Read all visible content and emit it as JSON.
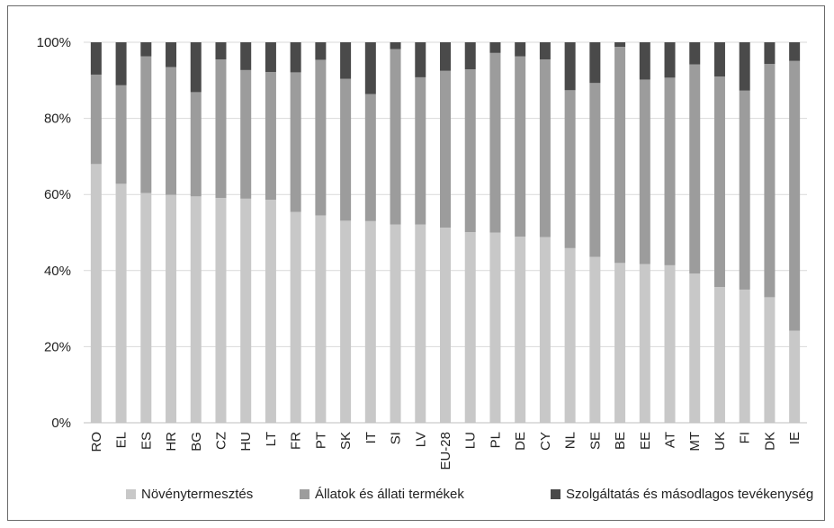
{
  "chart_data": {
    "type": "bar",
    "stacked": true,
    "percent_axis": true,
    "categories": [
      "RO",
      "EL",
      "ES",
      "HR",
      "BG",
      "CZ",
      "HU",
      "LT",
      "FR",
      "PT",
      "SK",
      "IT",
      "SI",
      "LV",
      "EU-28",
      "LU",
      "PL",
      "DE",
      "CY",
      "NL",
      "SE",
      "BE",
      "EE",
      "AT",
      "MT",
      "UK",
      "FI",
      "DK",
      "IE"
    ],
    "series": [
      {
        "name": "Növénytermesztés",
        "color": "#c8c8c8",
        "values": [
          68.0,
          62.8,
          60.4,
          59.9,
          59.5,
          59.1,
          58.9,
          58.6,
          55.4,
          54.5,
          53.1,
          53.0,
          52.1,
          52.1,
          51.3,
          50.1,
          50.0,
          48.9,
          48.8,
          45.9,
          43.6,
          42.0,
          41.7,
          41.4,
          39.2,
          35.7,
          35.0,
          33.0,
          24.2
        ]
      },
      {
        "name": "Állatok és állati termékek",
        "color": "#9c9c9c",
        "values": [
          23.5,
          25.9,
          35.9,
          33.6,
          27.4,
          36.4,
          33.8,
          33.6,
          36.7,
          40.9,
          37.3,
          33.4,
          46.1,
          38.7,
          41.2,
          42.8,
          47.2,
          47.4,
          46.7,
          41.5,
          45.7,
          56.8,
          48.5,
          49.3,
          55.0,
          55.3,
          52.3,
          61.3,
          70.9
        ]
      },
      {
        "name": "Szolgáltatás és másodlagos tevékenység",
        "color": "#4a4a4a",
        "values": [
          8.5,
          11.3,
          3.7,
          6.5,
          13.1,
          4.5,
          7.3,
          7.8,
          7.9,
          4.6,
          9.6,
          13.6,
          1.8,
          9.2,
          7.5,
          7.1,
          2.8,
          3.7,
          4.5,
          12.6,
          10.7,
          1.2,
          9.8,
          9.3,
          5.8,
          9.0,
          12.7,
          5.7,
          4.9
        ]
      }
    ],
    "ylim": [
      0,
      100
    ],
    "yticks": [
      "0%",
      "20%",
      "40%",
      "60%",
      "80%",
      "100%"
    ],
    "grid": true,
    "legend_position": "bottom"
  }
}
